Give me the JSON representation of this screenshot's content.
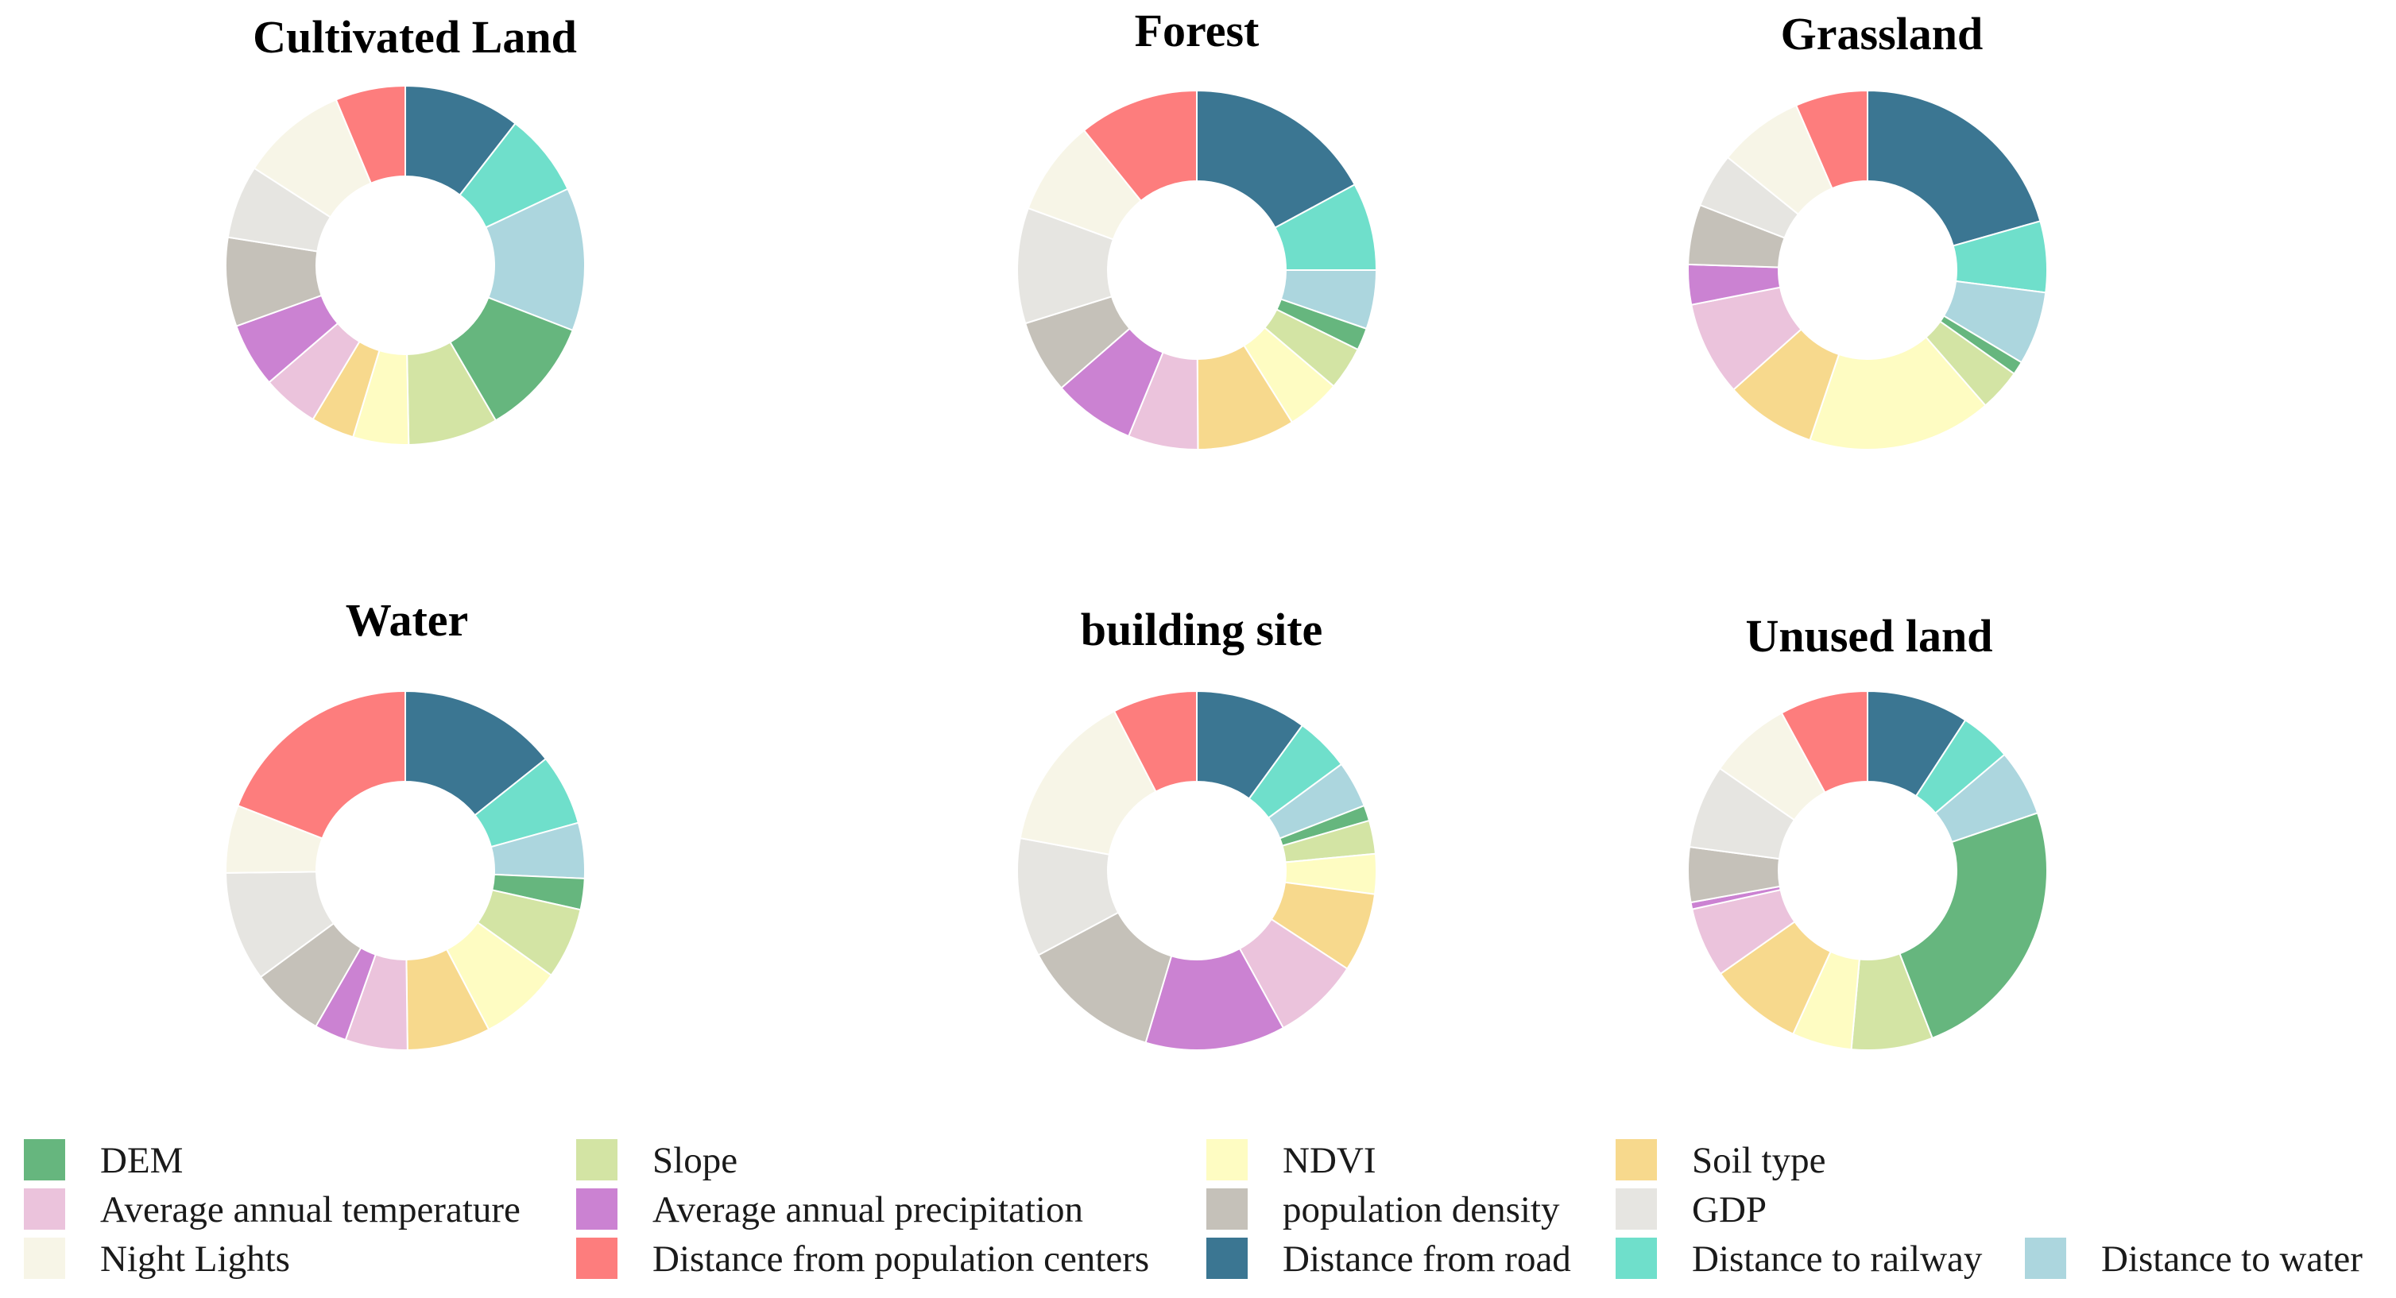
{
  "chart_data": {
    "type": "pie",
    "variant": "donut",
    "categories": [
      "Distance from road",
      "Distance to railway",
      "Distance to water",
      "DEM",
      "Slope",
      "NDVI",
      "Soil type",
      "Average annual temperature",
      "Average annual precipitation",
      "population density",
      "GDP",
      "Night Lights",
      "Distance from population centers"
    ],
    "colors": {
      "Distance from road": "#3b7692",
      "Distance to railway": "#6fdfcb",
      "Distance to water": "#acd6de",
      "DEM": "#66b67e",
      "Slope": "#d3e4a4",
      "NDVI": "#fefcc2",
      "Soil type": "#f7d98d",
      "Average annual temperature": "#ebc3dc",
      "Average annual precipitation": "#cb82d2",
      "population density": "#c5c1b9",
      "GDP": "#e6e5e1",
      "Night Lights": "#f7f5e7",
      "Distance from population centers": "#fd7d7d"
    },
    "charts": [
      {
        "title": "Cultivated Land",
        "values": {
          "DEM": 0.107,
          "Slope": 0.081,
          "NDVI": 0.05,
          "Soil type": 0.039,
          "Average annual temperature": 0.051,
          "Average annual precipitation": 0.058,
          "population density": 0.08,
          "GDP": 0.066,
          "Night Lights": 0.096,
          "Distance from population centers": 0.063,
          "Distance from road": 0.105,
          "Distance to railway": 0.075,
          "Distance to water": 0.129
        }
      },
      {
        "title": "Forest",
        "values": {
          "Distance from road": 0.171,
          "Distance to railway": 0.079,
          "Distance to water": 0.053,
          "DEM": 0.02,
          "Slope": 0.039,
          "NDVI": 0.049,
          "Soil type": 0.088,
          "Average annual temperature": 0.063,
          "Average annual precipitation": 0.074,
          "population density": 0.066,
          "GDP": 0.104,
          "Night Lights": 0.086,
          "Distance from population centers": 0.108
        }
      },
      {
        "title": "Grassland",
        "values": {
          "Distance from road": 0.206,
          "Distance to railway": 0.064,
          "Distance to water": 0.066,
          "DEM": 0.012,
          "Slope": 0.038,
          "NDVI": 0.166,
          "Soil type": 0.082,
          "Average annual temperature": 0.085,
          "Average annual precipitation": 0.036,
          "population density": 0.054,
          "GDP": 0.049,
          "Night Lights": 0.077,
          "Distance from population centers": 0.065
        }
      },
      {
        "title": "Water",
        "values": {
          "Distance from road": 0.143,
          "Distance to railway": 0.064,
          "Distance to water": 0.05,
          "DEM": 0.028,
          "Slope": 0.064,
          "NDVI": 0.074,
          "Soil type": 0.075,
          "Average annual temperature": 0.056,
          "Average annual precipitation": 0.029,
          "population density": 0.066,
          "GDP": 0.099,
          "Night Lights": 0.061,
          "Distance from population centers": 0.191
        }
      },
      {
        "title": "building site",
        "values": {
          "Distance from road": 0.1,
          "Distance to railway": 0.049,
          "Distance to water": 0.042,
          "DEM": 0.014,
          "Slope": 0.03,
          "NDVI": 0.036,
          "Soil type": 0.071,
          "Average annual temperature": 0.078,
          "Average annual precipitation": 0.126,
          "population density": 0.126,
          "GDP": 0.107,
          "Night Lights": 0.145,
          "Distance from population centers": 0.076
        }
      },
      {
        "title": "Unused land",
        "values": {
          "Distance from road": 0.089,
          "Distance to railway": 0.045,
          "Distance to water": 0.058,
          "DEM": 0.236,
          "Slope": 0.071,
          "NDVI": 0.052,
          "Soil type": 0.082,
          "Average annual temperature": 0.061,
          "Average annual precipitation": 0.006,
          "population density": 0.048,
          "GDP": 0.073,
          "Night Lights": 0.072,
          "Distance from population centers": 0.077
        }
      }
    ],
    "legend": [
      "DEM",
      "Slope",
      "NDVI",
      "Soil type",
      "Average annual temperature",
      "Average annual precipitation",
      "population density",
      "GDP",
      "Night Lights",
      "Distance from population centers",
      "Distance from road",
      "Distance to railway",
      "Distance to water"
    ],
    "legend_position": "bottom"
  }
}
